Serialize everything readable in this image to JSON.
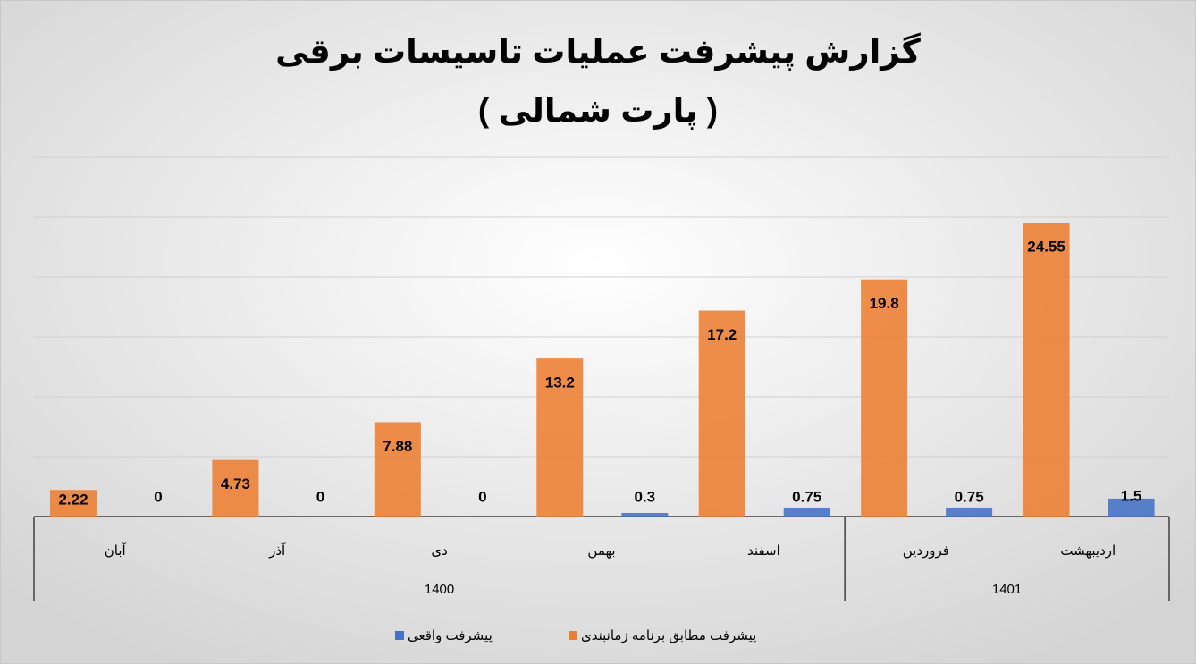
{
  "chart_data": {
    "type": "bar",
    "title": "گزارش پیشرفت عملیات تاسیسات برقی",
    "subtitle": "( پارت شمالی )",
    "categories": [
      "آبان",
      "آذر",
      "دی",
      "بهمن",
      "اسفند",
      "فروردین",
      "اردیبهشت"
    ],
    "groups": [
      {
        "label": "1400",
        "count": 5
      },
      {
        "label": "1401",
        "count": 2
      }
    ],
    "series": [
      {
        "name": "پیشرفت مطابق برنامه زمانبندی",
        "color": "#ed7d31",
        "values": [
          2.22,
          4.73,
          7.88,
          13.2,
          17.2,
          19.8,
          24.55
        ]
      },
      {
        "name": "پیشرفت واقعی",
        "color": "#4472c4",
        "values": [
          0,
          0,
          0,
          0.3,
          0.75,
          0.75,
          1.5
        ]
      }
    ],
    "ylim": [
      0,
      30
    ],
    "yticks": [
      0,
      5,
      10,
      15,
      20,
      25,
      30
    ],
    "grid": true
  }
}
